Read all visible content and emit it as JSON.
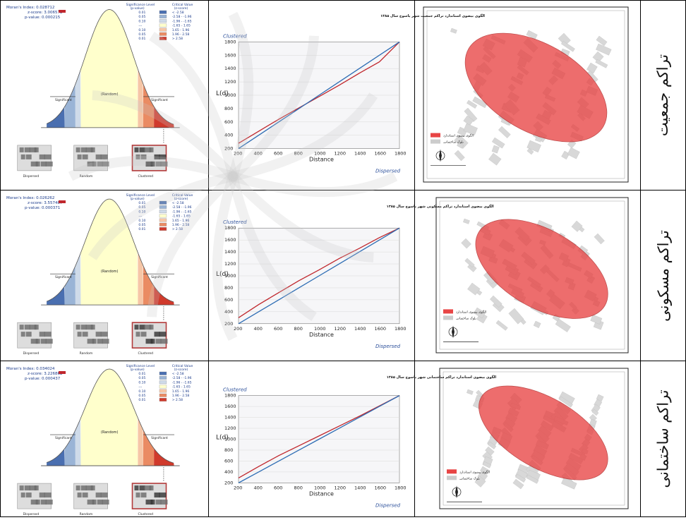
{
  "rows": [
    {
      "label": "تراکم جمعیت",
      "moran": {
        "index_label": "Moran's Index:",
        "index": "0.028712",
        "z_label": "z-score:",
        "z": "3.006572",
        "p_label": "p-value:",
        "p": "0.000215"
      },
      "map_title": "الگوی بیضوی استاندارد تراکم جمعیت شهر یاسوج سال ۱۳۸۵",
      "chart_data": {
        "type": "line",
        "ylabel": "L(d)",
        "xlabel": "Distance",
        "x": [
          200,
          400,
          600,
          800,
          1000,
          1200,
          1400,
          1600,
          1800
        ],
        "series": [
          {
            "values": [
              280,
              460,
              640,
              810,
              980,
              1150,
              1330,
              1500,
              1800
            ]
          },
          {
            "values": [
              200,
              400,
              600,
              800,
              1000,
              1200,
              1400,
              1600,
              1800
            ]
          }
        ],
        "ylim": [
          200,
          1800
        ],
        "top_label": "Clustered",
        "bottom_label": "Dispersed"
      }
    },
    {
      "label": "تراکم مسکونی",
      "moran": {
        "index_label": "Moran's Index:",
        "index": "0.026262",
        "z_label": "z-score:",
        "z": "3.557407",
        "p_label": "p-value:",
        "p": "0.000371"
      },
      "map_title": "الگوی بیضوی استاندارد تراکم مسکونی شهر یاسوج سال ۱۳۸۵",
      "chart_data": {
        "type": "line",
        "ylabel": "L(d)",
        "xlabel": "Distance",
        "x": [
          200,
          400,
          600,
          800,
          1000,
          1200,
          1400,
          1600,
          1800
        ],
        "series": [
          {
            "values": [
              300,
              520,
              720,
              920,
              1100,
              1290,
              1460,
              1640,
              1800
            ]
          },
          {
            "values": [
              200,
              400,
              600,
              800,
              1000,
              1200,
              1400,
              1600,
              1800
            ]
          }
        ],
        "ylim": [
          200,
          1800
        ],
        "top_label": "Clustered",
        "bottom_label": "Dispersed"
      }
    },
    {
      "label": "تراکم ساختمانی",
      "moran": {
        "index_label": "Moran's Index:",
        "index": "0.034024",
        "z_label": "z-score:",
        "z": "3.226862",
        "p_label": "p-value:",
        "p": "0.000437"
      },
      "map_title": "الگوی بیضوی استاندارد تراکم ساختمانی شهر یاسوج سال ۱۳۸۵",
      "chart_data": {
        "type": "line",
        "ylabel": "L(d)",
        "xlabel": "Distance",
        "x": [
          200,
          400,
          600,
          800,
          1000,
          1200,
          1400,
          1600,
          1800
        ],
        "series": [
          {
            "values": [
              290,
              500,
              700,
              880,
              1060,
              1240,
              1420,
              1610,
              1800
            ]
          },
          {
            "values": [
              200,
              400,
              600,
              800,
              1000,
              1200,
              1400,
              1600,
              1800
            ]
          }
        ],
        "ylim": [
          200,
          1800
        ],
        "top_label": "Clustered",
        "bottom_label": "Dispersed"
      }
    }
  ],
  "curve": {
    "sig_header": "Significance Level",
    "p_header": "(p-value)",
    "crit_header": "Critical Value",
    "z_header": "(z-score)",
    "levels": [
      "0.01",
      "0.05",
      "0.10",
      "---",
      "0.10",
      "0.05",
      "0.01"
    ],
    "ranges": [
      "< -2.58",
      "-2.58 - -1.96",
      "-1.96 - -1.65",
      "-1.65 - 1.65",
      "1.65 - 1.96",
      "1.96 - 2.58",
      "> 2.58"
    ],
    "colors": [
      "#4a6fb0",
      "#9ab4d6",
      "#cfdbe9",
      "#ffffcc",
      "#f6c6a6",
      "#ea8b63",
      "#d03a2c"
    ],
    "random": "(Random)",
    "significant": "Significant",
    "thumbs": [
      "Dispersed",
      "Random",
      "Clustered"
    ]
  },
  "map_legend": {
    "ellipse": "الگوی بیضوی استاندارد",
    "blocks": "بلوک ساختمانی"
  },
  "colors": {
    "ellipse": "#e84545",
    "line_red": "#c0272d",
    "line_blue": "#2e6db4",
    "bell": "#ffffc8"
  }
}
